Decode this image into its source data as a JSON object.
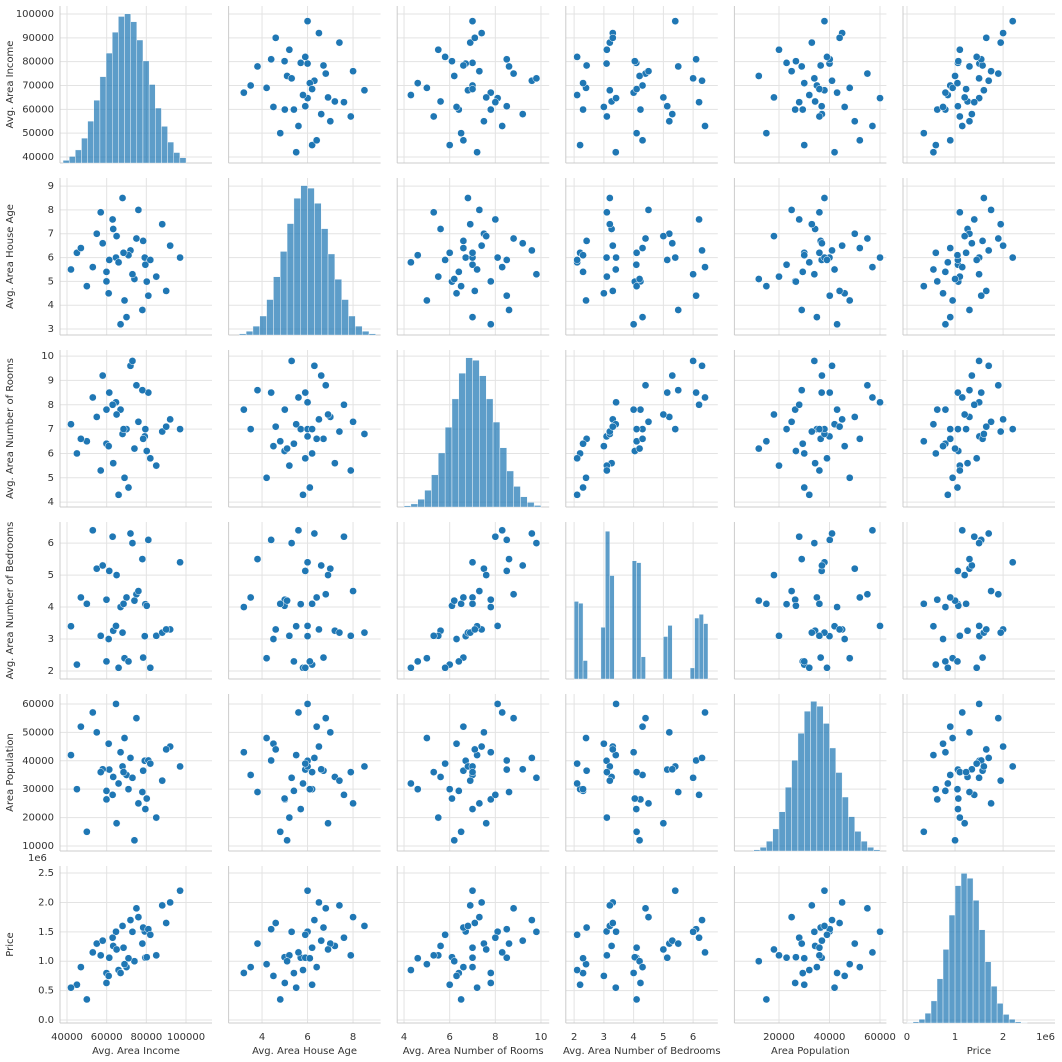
{
  "chart_data": {
    "type": "pairplot",
    "color": "#1f77b4",
    "grid": true,
    "variables": [
      {
        "name": "Avg. Area Income",
        "xlim": [
          36470,
          113100
        ],
        "ylim": [
          37480,
          103360
        ],
        "xticks": [
          40000,
          60000,
          80000,
          100000
        ],
        "yticks": [
          40000,
          50000,
          60000,
          70000,
          80000,
          90000,
          100000
        ],
        "bins": [
          38000,
          41100,
          44200,
          47300,
          50400,
          53500,
          56600,
          59700,
          62800,
          65900,
          69000,
          72100,
          75200,
          78300,
          81400,
          84500,
          87600,
          90700,
          93800,
          96900,
          100000
        ],
        "counts": [
          10,
          25,
          50,
          95,
          160,
          240,
          330,
          420,
          500,
          560,
          570,
          540,
          470,
          390,
          300,
          210,
          140,
          80,
          40,
          20
        ],
        "hist_ylim": [
          0,
          600
        ]
      },
      {
        "name": "Avg. Area House Age",
        "xlim": [
          2.53,
          9.21
        ],
        "ylim": [
          2.75,
          9.34
        ],
        "xticks": [
          4,
          6,
          8
        ],
        "yticks": [
          3,
          4,
          5,
          6,
          7,
          8,
          9
        ],
        "bins": [
          3.0,
          3.3,
          3.6,
          3.9,
          4.2,
          4.5,
          4.8,
          5.1,
          5.4,
          5.7,
          6.0,
          6.3,
          6.6,
          6.9,
          7.2,
          7.5,
          7.8,
          8.1,
          8.4,
          8.7,
          9.0
        ],
        "counts": [
          5,
          15,
          35,
          75,
          140,
          230,
          330,
          440,
          540,
          590,
          580,
          520,
          420,
          320,
          220,
          140,
          75,
          35,
          15,
          5
        ],
        "hist_ylim": [
          0,
          620
        ]
      },
      {
        "name": "Avg. Area Number of Rooms",
        "xlim": [
          3.7,
          10.36
        ],
        "ylim": [
          3.8,
          10.25
        ],
        "xticks": [
          4,
          6,
          8,
          10
        ],
        "yticks": [
          4,
          5,
          6,
          7,
          8,
          9,
          10
        ],
        "bins": [
          4.0,
          4.3,
          4.6,
          4.9,
          5.2,
          5.5,
          5.8,
          6.1,
          6.4,
          6.7,
          7.0,
          7.3,
          7.6,
          7.9,
          8.2,
          8.5,
          8.8,
          9.1,
          9.4,
          9.7,
          10.0
        ],
        "counts": [
          5,
          12,
          30,
          65,
          125,
          210,
          310,
          420,
          520,
          580,
          570,
          510,
          420,
          330,
          230,
          140,
          80,
          40,
          18,
          6
        ],
        "hist_ylim": [
          0,
          610
        ]
      },
      {
        "name": "Avg. Area Number of Bedrooms",
        "xlim": [
          1.72,
          6.83
        ],
        "ylim": [
          1.75,
          6.66
        ],
        "xticks": [
          2,
          3,
          4,
          5,
          6
        ],
        "yticks": [
          2,
          3,
          4,
          5,
          6
        ],
        "bins": [
          2.0,
          2.15,
          2.3,
          2.45,
          2.6,
          2.75,
          2.9,
          3.05,
          3.2,
          3.35,
          3.5,
          3.65,
          3.8,
          3.95,
          4.1,
          4.25,
          4.4,
          4.55,
          4.7,
          4.85,
          5.0,
          5.15,
          5.3,
          5.45,
          5.6,
          5.75,
          5.9,
          6.05,
          6.2,
          6.35,
          6.5
        ],
        "counts": [
          420,
          410,
          100,
          0,
          0,
          0,
          280,
          800,
          560,
          0,
          0,
          0,
          0,
          640,
          630,
          120,
          0,
          0,
          0,
          0,
          230,
          290,
          0,
          0,
          0,
          0,
          60,
          330,
          350,
          300
        ],
        "hist_ylim": [
          0,
          850
        ]
      },
      {
        "name": "Area Population",
        "xlim": [
          2340,
          62530
        ],
        "ylim": [
          8240,
          63500
        ],
        "xticks": [
          20000,
          40000,
          60000
        ],
        "yticks": [
          10000,
          20000,
          30000,
          40000,
          50000,
          60000
        ],
        "bins": [
          10000,
          12500,
          15000,
          17500,
          20000,
          22500,
          25000,
          27500,
          30000,
          32500,
          35000,
          37500,
          40000,
          42500,
          45000,
          47500,
          50000,
          52500,
          55000,
          57500,
          60000
        ],
        "counts": [
          5,
          15,
          40,
          90,
          160,
          260,
          370,
          480,
          570,
          610,
          590,
          520,
          420,
          320,
          220,
          140,
          80,
          40,
          15,
          5
        ],
        "hist_ylim": [
          0,
          640
        ]
      },
      {
        "name": "Price",
        "xlim": [
          -83000,
          3080000
        ],
        "ylim": [
          -51000,
          2620000
        ],
        "offset_label": "1e6",
        "xticks": [
          {
            "value": 0,
            "label": "0"
          },
          {
            "value": 1000000,
            "label": "1"
          },
          {
            "value": 2000000,
            "label": "2"
          }
        ],
        "yticks": [
          {
            "value": 0,
            "label": "0.0"
          },
          {
            "value": 500000,
            "label": "0.5"
          },
          {
            "value": 1000000,
            "label": "1.0"
          },
          {
            "value": 1500000,
            "label": "1.5"
          },
          {
            "value": 2000000,
            "label": "2.0"
          },
          {
            "value": 2500000,
            "label": "2.5"
          }
        ],
        "bins": [
          0,
          125000,
          250000,
          375000,
          500000,
          625000,
          750000,
          875000,
          1000000,
          1125000,
          1250000,
          1375000,
          1500000,
          1625000,
          1750000,
          1875000,
          2000000,
          2125000,
          2250000,
          2375000,
          2500000
        ],
        "counts": [
          2,
          5,
          15,
          40,
          90,
          180,
          300,
          440,
          560,
          610,
          590,
          500,
          380,
          250,
          150,
          80,
          35,
          15,
          5,
          2
        ],
        "hist_ylim": [
          0,
          640
        ]
      }
    ],
    "points": [
      [
        79500,
        5.7,
        7.0,
        4.09,
        23000,
        1060000
      ],
      [
        79200,
        6.0,
        6.7,
        3.09,
        40000,
        1506000
      ],
      [
        61300,
        5.9,
        8.5,
        5.13,
        36900,
        1059000
      ],
      [
        63300,
        7.2,
        5.6,
        3.26,
        34300,
        1260000
      ],
      [
        59900,
        5.0,
        7.8,
        4.23,
        26400,
        630000
      ],
      [
        80200,
        4.99,
        6.1,
        4.04,
        26700,
        1068000
      ],
      [
        64700,
        6.0,
        8.1,
        3.41,
        60000,
        1502000
      ],
      [
        78400,
        6.7,
        6.6,
        2.42,
        36500,
        1573000
      ],
      [
        59900,
        5.4,
        6.4,
        2.3,
        29400,
        798000
      ],
      [
        81000,
        4.4,
        8.5,
        6.1,
        40100,
        1545000
      ],
      [
        45000,
        6.2,
        6.0,
        2.2,
        30000,
        600000
      ],
      [
        92000,
        6.5,
        7.4,
        3.3,
        45000,
        2000000
      ],
      [
        70000,
        3.5,
        7.0,
        4.3,
        35000,
        900000
      ],
      [
        68000,
        8.5,
        6.8,
        3.2,
        38000,
        1600000
      ],
      [
        66000,
        5.8,
        4.3,
        2.1,
        32000,
        850000
      ],
      [
        72000,
        6.3,
        9.6,
        6.3,
        41000,
        1700000
      ],
      [
        55000,
        7.0,
        7.5,
        5.2,
        50000,
        1300000
      ],
      [
        85000,
        5.2,
        5.5,
        3.1,
        20000,
        1100000
      ],
      [
        75000,
        6.8,
        8.8,
        4.4,
        55000,
        1900000
      ],
      [
        50000,
        4.8,
        6.5,
        4.1,
        15000,
        350000
      ],
      [
        97000,
        6.0,
        7.0,
        5.4,
        38000,
        2200000
      ],
      [
        42000,
        5.5,
        7.2,
        3.4,
        42000,
        550000
      ],
      [
        69000,
        4.2,
        5.0,
        2.4,
        48000,
        950000
      ],
      [
        63000,
        7.6,
        8.0,
        6.2,
        28000,
        1400000
      ],
      [
        74000,
        5.1,
        6.2,
        4.2,
        12000,
        1000000
      ],
      [
        58000,
        6.6,
        9.2,
        5.3,
        37000,
        1350000
      ],
      [
        88000,
        7.4,
        6.9,
        3.2,
        33000,
        1950000
      ],
      [
        67000,
        3.2,
        7.8,
        4.0,
        43000,
        800000
      ],
      [
        71000,
        6.1,
        4.6,
        2.3,
        30000,
        1050000
      ],
      [
        53000,
        5.6,
        8.3,
        6.4,
        57000,
        1150000
      ],
      [
        76000,
        8.0,
        7.3,
        4.5,
        25000,
        1750000
      ],
      [
        61000,
        4.5,
        6.3,
        3.0,
        46000,
        750000
      ],
      [
        82000,
        5.9,
        5.8,
        2.1,
        39000,
        1450000
      ],
      [
        65000,
        6.9,
        7.6,
        5.0,
        18000,
        1200000
      ],
      [
        47000,
        6.4,
        6.6,
        4.3,
        52000,
        900000
      ],
      [
        73000,
        5.3,
        9.8,
        6.0,
        34000,
        1500000
      ],
      [
        90000,
        4.6,
        7.1,
        3.3,
        44000,
        1650000
      ],
      [
        57000,
        7.9,
        5.3,
        3.1,
        36000,
        1100000
      ],
      [
        68500,
        6.2,
        7.0,
        4.1,
        36000,
        1230000
      ],
      [
        78000,
        3.8,
        8.6,
        5.5,
        29000,
        1300000
      ]
    ]
  }
}
